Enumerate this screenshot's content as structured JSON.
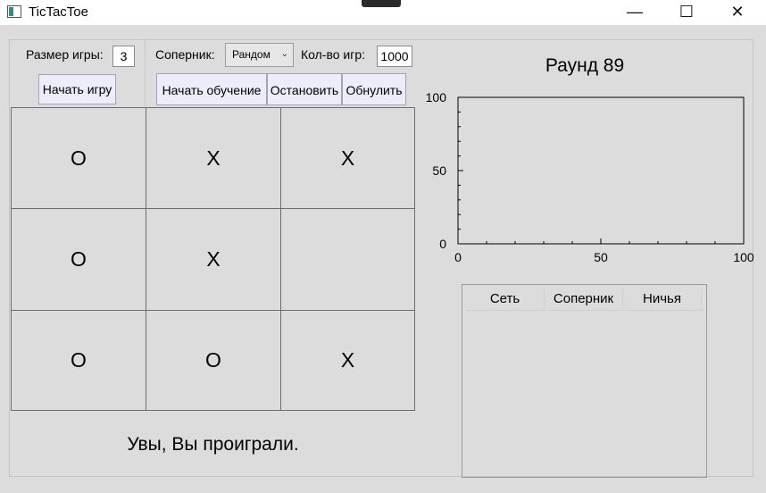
{
  "window": {
    "title": "TicTacToe",
    "controls": {
      "minimize": "—",
      "maximize": "☐",
      "close": "✕"
    }
  },
  "settings": {
    "size_label": "Размер игры:",
    "size_value": "3",
    "start_game_label": "Начать игру",
    "opponent_label": "Соперник:",
    "opponent_value": "Рандом",
    "games_label": "Кол-во игр:",
    "games_value": "1000",
    "train_label": "Начать обучение",
    "stop_label": "Остановить",
    "reset_label": "Обнулить"
  },
  "board": {
    "cells": [
      "O",
      "X",
      "X",
      "O",
      "X",
      "",
      "O",
      "O",
      "X"
    ]
  },
  "status": {
    "result": "Увы, Вы проиграли.",
    "round": "Раунд 89"
  },
  "chart_data": {
    "type": "line",
    "series": [],
    "xlim": [
      0,
      100
    ],
    "ylim": [
      0,
      100
    ],
    "x_ticks": [
      "0",
      "50",
      "100"
    ],
    "y_ticks": [
      "0",
      "50",
      "100"
    ],
    "grid": false
  },
  "results_table": {
    "columns": [
      "Сеть",
      "Соперник",
      "Ничья"
    ],
    "rows": []
  }
}
